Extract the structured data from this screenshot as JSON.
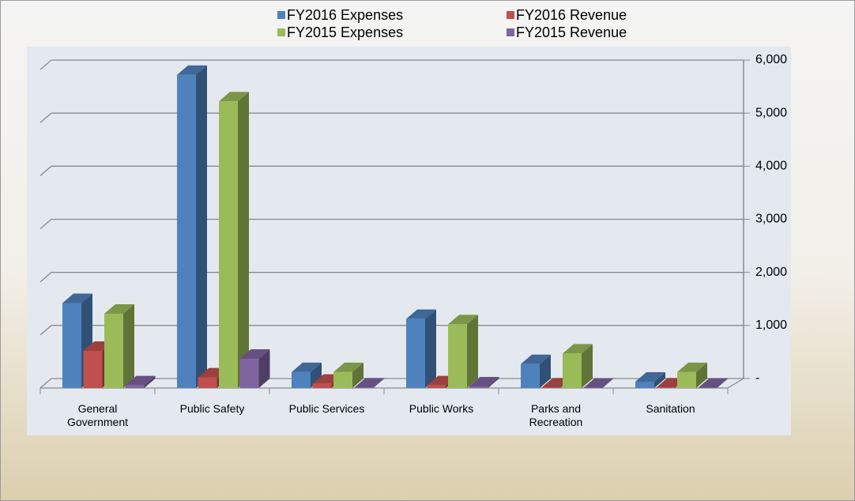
{
  "chart_data": {
    "type": "bar3d",
    "categories": [
      "General Government",
      "Public Safety",
      "Public Services",
      "Public Works",
      "Parks and Recreation",
      "Sanitation"
    ],
    "series": [
      {
        "name": "FY2016 Expenses",
        "color": "#4f81bd",
        "values": [
          1600,
          5900,
          300,
          1300,
          450,
          120
        ]
      },
      {
        "name": "FY2016 Revenue",
        "color": "#c0504d",
        "values": [
          700,
          200,
          80,
          50,
          10,
          10
        ]
      },
      {
        "name": "FY2015 Expenses",
        "color": "#9bbb59",
        "values": [
          1400,
          5400,
          300,
          1200,
          650,
          300
        ]
      },
      {
        "name": "FY2015 Revenue",
        "color": "#8064a2",
        "values": [
          50,
          550,
          10,
          30,
          5,
          5
        ]
      }
    ],
    "ylim": [
      0,
      6000
    ],
    "yticks": [
      {
        "value": 0,
        "label": "-"
      },
      {
        "value": 1000,
        "label": "1,000"
      },
      {
        "value": 2000,
        "label": "2,000"
      },
      {
        "value": 3000,
        "label": "3,000"
      },
      {
        "value": 4000,
        "label": "4,000"
      },
      {
        "value": 5000,
        "label": "5,000"
      },
      {
        "value": 6000,
        "label": "6,000"
      }
    ],
    "grid": true
  }
}
